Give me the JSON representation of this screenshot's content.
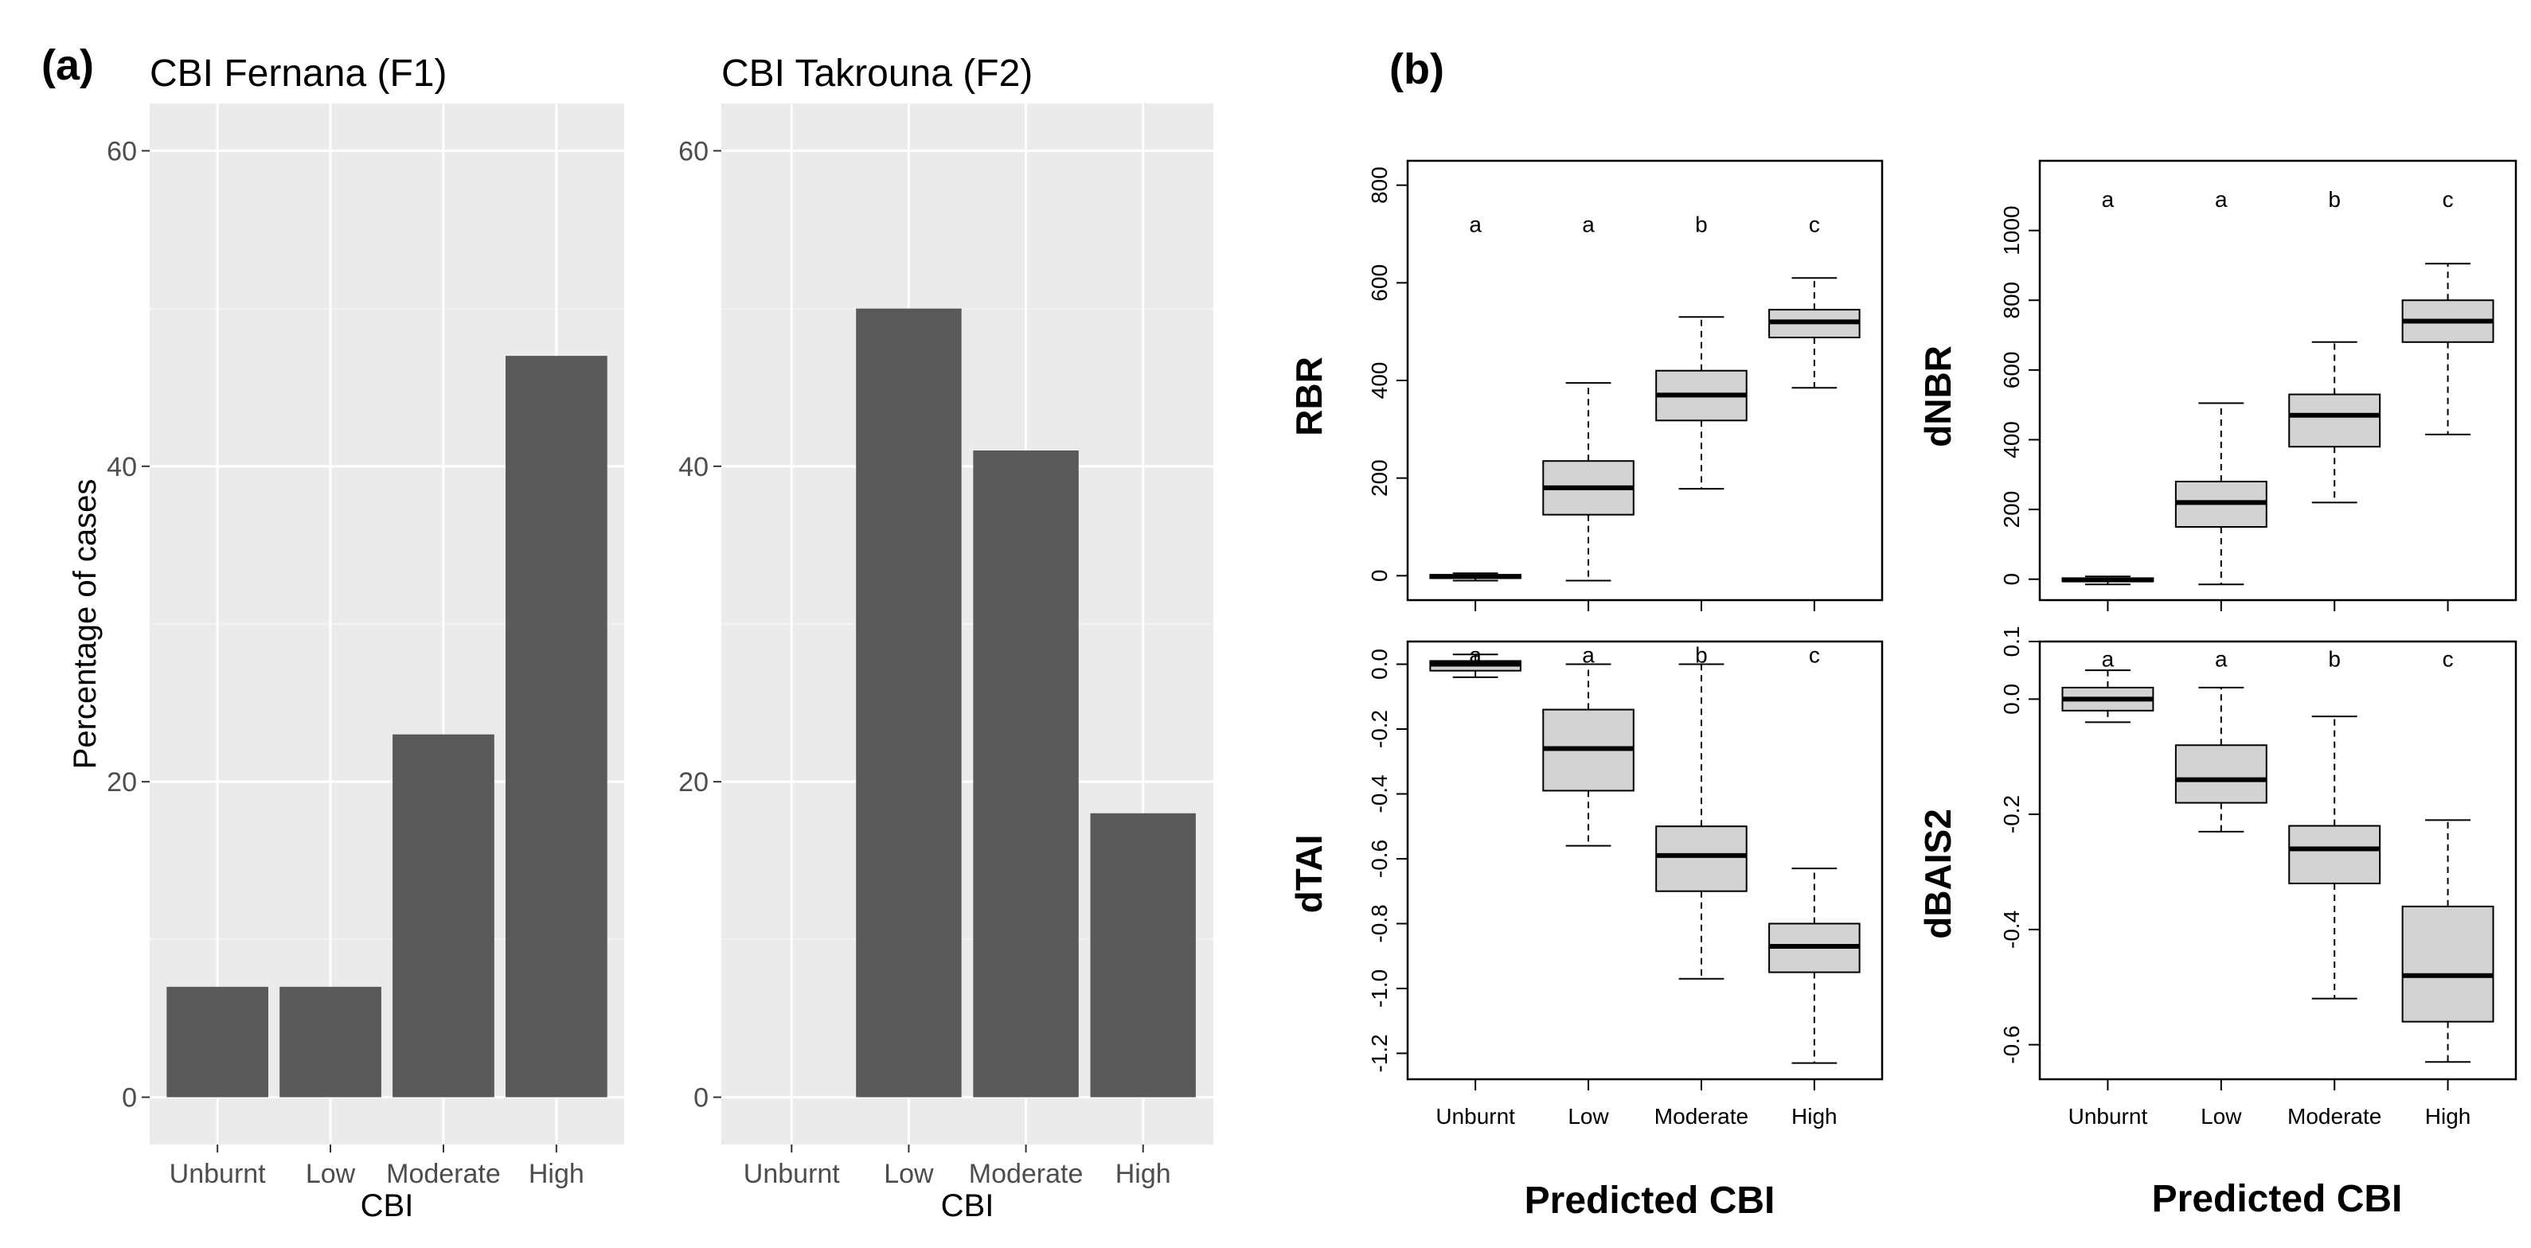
{
  "panel_a_tag": "(a)",
  "panel_b_tag": "(b)",
  "chart_data": [
    {
      "type": "bar",
      "title": "CBI Fernana (F1)",
      "xlabel": "CBI",
      "ylabel": "Percentage of cases",
      "categories": [
        "Unburnt",
        "Low",
        "Moderate",
        "High"
      ],
      "values": [
        7,
        7,
        23,
        47
      ],
      "ylim": [
        -3,
        63
      ],
      "yticks": [
        0,
        20,
        40,
        60
      ],
      "ytick_labels": [
        "0",
        "20",
        "40",
        "60"
      ],
      "grid": true,
      "bar_color": "#595959",
      "panel_background": "#ebebeb"
    },
    {
      "type": "bar",
      "title": "CBI Takrouna (F2)",
      "xlabel": "CBI",
      "ylabel": "",
      "categories": [
        "Unburnt",
        "Low",
        "Moderate",
        "High"
      ],
      "values": [
        0,
        50,
        41,
        18
      ],
      "ylim": [
        -3,
        63
      ],
      "yticks": [
        0,
        20,
        40,
        60
      ],
      "ytick_labels": [
        "0",
        "20",
        "40",
        "60"
      ],
      "grid": true,
      "bar_color": "#595959",
      "panel_background": "#ebebeb"
    },
    {
      "type": "box",
      "ylabel": "RBR",
      "xlabel": "",
      "categories": [
        "Unburnt",
        "Low",
        "Moderate",
        "High"
      ],
      "boxes": [
        {
          "category": "Unburnt",
          "whisker_low": -10,
          "q1": -5,
          "median": -2,
          "q3": 2,
          "whisker_high": 5
        },
        {
          "category": "Low",
          "whisker_low": -10,
          "q1": 125,
          "median": 180,
          "q3": 235,
          "whisker_high": 395
        },
        {
          "category": "Moderate",
          "whisker_low": 178,
          "q1": 318,
          "median": 370,
          "q3": 420,
          "whisker_high": 530
        },
        {
          "category": "High",
          "whisker_low": 385,
          "q1": 488,
          "median": 520,
          "q3": 545,
          "whisker_high": 610
        }
      ],
      "letters": [
        "a",
        "a",
        "b",
        "c"
      ],
      "letter_y": 720,
      "ylim": [
        -50,
        850
      ],
      "yticks": [
        0,
        200,
        400,
        600,
        800
      ],
      "ytick_labels": [
        "0",
        "200",
        "400",
        "600",
        "800"
      ],
      "box_color": "#d3d3d3"
    },
    {
      "type": "box",
      "ylabel": "dNBR",
      "xlabel": "Predicted CBI",
      "categories": [
        "Unburnt",
        "Low",
        "Moderate",
        "High"
      ],
      "boxes": [
        {
          "category": "Unburnt",
          "whisker_low": -15,
          "q1": -6,
          "median": -2,
          "q3": 3,
          "whisker_high": 8
        },
        {
          "category": "Low",
          "whisker_low": -15,
          "q1": 150,
          "median": 220,
          "q3": 280,
          "whisker_high": 505
        },
        {
          "category": "Moderate",
          "whisker_low": 220,
          "q1": 380,
          "median": 470,
          "q3": 530,
          "whisker_high": 680
        },
        {
          "category": "High",
          "whisker_low": 415,
          "q1": 680,
          "median": 740,
          "q3": 800,
          "whisker_high": 905
        }
      ],
      "letters": [
        "a",
        "a",
        "b",
        "c"
      ],
      "letter_y": 1090,
      "ylim": [
        -60,
        1200
      ],
      "yticks": [
        0,
        200,
        400,
        600,
        800,
        1000
      ],
      "ytick_labels": [
        "0",
        "200",
        "400",
        "600",
        "800",
        "1000"
      ],
      "box_color": "#d3d3d3"
    },
    {
      "type": "box",
      "ylabel": "dTAI",
      "xlabel": "Predicted CBI",
      "categories": [
        "Unburnt",
        "Low",
        "Moderate",
        "High"
      ],
      "boxes": [
        {
          "category": "Unburnt",
          "whisker_low": -0.04,
          "q1": -0.02,
          "median": 0.0,
          "q3": 0.01,
          "whisker_high": 0.03
        },
        {
          "category": "Low",
          "whisker_low": -0.56,
          "q1": -0.39,
          "median": -0.26,
          "q3": -0.14,
          "whisker_high": 0.0
        },
        {
          "category": "Moderate",
          "whisker_low": -0.97,
          "q1": -0.7,
          "median": -0.59,
          "q3": -0.5,
          "whisker_high": 0.0
        },
        {
          "category": "High",
          "whisker_low": -1.23,
          "q1": -0.95,
          "median": -0.87,
          "q3": -0.8,
          "whisker_high": -0.63
        }
      ],
      "letters": [
        "a",
        "a",
        "b",
        "c"
      ],
      "letter_y": 0.03,
      "ylim": [
        -1.28,
        0.07
      ],
      "yticks": [
        0.0,
        -0.2,
        -0.4,
        -0.6,
        -0.8,
        -1.0,
        -1.2
      ],
      "ytick_labels": [
        "0.0",
        "-0.2",
        "-0.4",
        "-0.6",
        "-0.8",
        "-1.0",
        "-1.2"
      ],
      "box_color": "#d3d3d3"
    },
    {
      "type": "box",
      "ylabel": "dBAIS2",
      "xlabel": "Predicted CBI",
      "categories": [
        "Unburnt",
        "Low",
        "Moderate",
        "High"
      ],
      "boxes": [
        {
          "category": "Unburnt",
          "whisker_low": -0.04,
          "q1": -0.02,
          "median": 0.0,
          "q3": 0.02,
          "whisker_high": 0.05
        },
        {
          "category": "Low",
          "whisker_low": -0.23,
          "q1": -0.18,
          "median": -0.14,
          "q3": -0.08,
          "whisker_high": 0.02
        },
        {
          "category": "Moderate",
          "whisker_low": -0.52,
          "q1": -0.32,
          "median": -0.26,
          "q3": -0.22,
          "whisker_high": -0.03
        },
        {
          "category": "High",
          "whisker_low": -0.63,
          "q1": -0.56,
          "median": -0.48,
          "q3": -0.36,
          "whisker_high": -0.21
        }
      ],
      "letters": [
        "a",
        "a",
        "b",
        "c"
      ],
      "letter_y": 0.07,
      "ylim": [
        -0.66,
        0.1
      ],
      "yticks": [
        0.1,
        0.0,
        -0.2,
        -0.4,
        -0.6
      ],
      "ytick_labels": [
        "0.1",
        "0.0",
        "-0.2",
        "-0.4",
        "-0.6"
      ],
      "box_color": "#d3d3d3"
    }
  ]
}
